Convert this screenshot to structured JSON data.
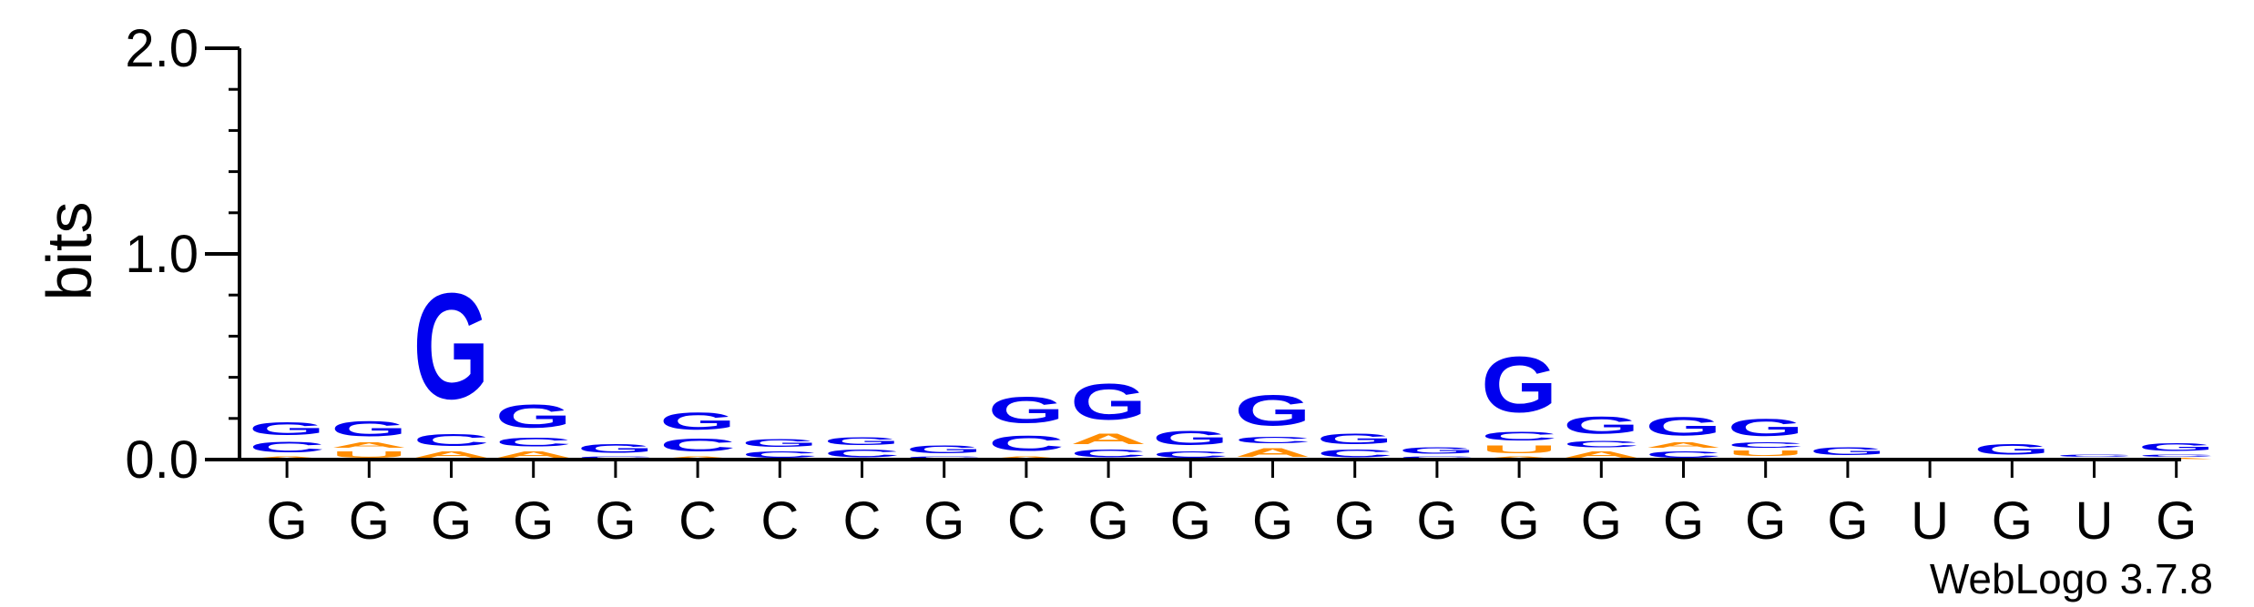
{
  "chart_data": {
    "type": "sequence-logo",
    "ylabel": "bits",
    "ylim": [
      0,
      2
    ],
    "yticks": [
      {
        "value": 0,
        "label": "0.0"
      },
      {
        "value": 1,
        "label": "1.0"
      },
      {
        "value": 2,
        "label": "2.0"
      }
    ],
    "minor_step": 0.2,
    "x_labels": [
      "G",
      "G",
      "G",
      "G",
      "G",
      "C",
      "C",
      "C",
      "G",
      "C",
      "G",
      "G",
      "G",
      "G",
      "G",
      "G",
      "G",
      "G",
      "G",
      "G",
      "U",
      "G",
      "U",
      "G"
    ],
    "colors": {
      "G": "#0000ee",
      "C": "#0000ee",
      "A": "#ff8c00",
      "U": "#ff8c00"
    },
    "positions": [
      {
        "stack": [
          {
            "letter": "A",
            "height": 0.02
          },
          {
            "letter": "C",
            "height": 0.08
          },
          {
            "letter": "G",
            "height": 0.1
          }
        ]
      },
      {
        "stack": [
          {
            "letter": "U",
            "height": 0.05
          },
          {
            "letter": "A",
            "height": 0.04
          },
          {
            "letter": "G",
            "height": 0.12
          }
        ]
      },
      {
        "stack": [
          {
            "letter": "A",
            "height": 0.05
          },
          {
            "letter": "C",
            "height": 0.09
          },
          {
            "letter": "G",
            "height": 0.82
          }
        ]
      },
      {
        "stack": [
          {
            "letter": "A",
            "height": 0.05
          },
          {
            "letter": "C",
            "height": 0.07
          },
          {
            "letter": "G",
            "height": 0.18
          }
        ]
      },
      {
        "stack": [
          {
            "letter": "C",
            "height": 0.02
          },
          {
            "letter": "G",
            "height": 0.07
          }
        ]
      },
      {
        "stack": [
          {
            "letter": "A",
            "height": 0.02
          },
          {
            "letter": "C",
            "height": 0.1
          },
          {
            "letter": "G",
            "height": 0.13
          }
        ]
      },
      {
        "stack": [
          {
            "letter": "C",
            "height": 0.05
          },
          {
            "letter": "G",
            "height": 0.06
          }
        ]
      },
      {
        "stack": [
          {
            "letter": "C",
            "height": 0.06
          },
          {
            "letter": "G",
            "height": 0.06
          }
        ]
      },
      {
        "stack": [
          {
            "letter": "C",
            "height": 0.02
          },
          {
            "letter": "G",
            "height": 0.06
          }
        ]
      },
      {
        "stack": [
          {
            "letter": "A",
            "height": 0.02
          },
          {
            "letter": "C",
            "height": 0.12
          },
          {
            "letter": "G",
            "height": 0.2
          }
        ]
      },
      {
        "stack": [
          {
            "letter": "C",
            "height": 0.06
          },
          {
            "letter": "A",
            "height": 0.08
          },
          {
            "letter": "G",
            "height": 0.28
          }
        ]
      },
      {
        "stack": [
          {
            "letter": "C",
            "height": 0.05
          },
          {
            "letter": "G",
            "height": 0.11
          }
        ]
      },
      {
        "stack": [
          {
            "letter": "A",
            "height": 0.07
          },
          {
            "letter": "C",
            "height": 0.05
          },
          {
            "letter": "G",
            "height": 0.24
          }
        ]
      },
      {
        "stack": [
          {
            "letter": "C",
            "height": 0.06
          },
          {
            "letter": "G",
            "height": 0.08
          }
        ]
      },
      {
        "stack": [
          {
            "letter": "C",
            "height": 0.02
          },
          {
            "letter": "G",
            "height": 0.05
          }
        ]
      },
      {
        "stack": [
          {
            "letter": "A",
            "height": 0.02
          },
          {
            "letter": "U",
            "height": 0.06
          },
          {
            "letter": "C",
            "height": 0.07
          },
          {
            "letter": "G",
            "height": 0.43
          }
        ]
      },
      {
        "stack": [
          {
            "letter": "A",
            "height": 0.05
          },
          {
            "letter": "C",
            "height": 0.05
          },
          {
            "letter": "G",
            "height": 0.13
          }
        ]
      },
      {
        "stack": [
          {
            "letter": "C",
            "height": 0.05
          },
          {
            "letter": "A",
            "height": 0.04
          },
          {
            "letter": "G",
            "height": 0.14
          }
        ]
      },
      {
        "stack": [
          {
            "letter": "A",
            "height": 0.01
          },
          {
            "letter": "U",
            "height": 0.04
          },
          {
            "letter": "C",
            "height": 0.04
          },
          {
            "letter": "G",
            "height": 0.13
          }
        ]
      },
      {
        "stack": [
          {
            "letter": "U",
            "height": 0.01
          },
          {
            "letter": "G",
            "height": 0.06
          }
        ]
      },
      {
        "stack": [
          {
            "letter": "U",
            "height": 0.01
          }
        ]
      },
      {
        "stack": [
          {
            "letter": "U",
            "height": 0.01
          },
          {
            "letter": "G",
            "height": 0.08
          }
        ]
      },
      {
        "stack": [
          {
            "letter": "U",
            "height": 0.01
          },
          {
            "letter": "C",
            "height": 0.02
          }
        ]
      },
      {
        "stack": [
          {
            "letter": "A",
            "height": 0.01
          },
          {
            "letter": "C",
            "height": 0.02
          },
          {
            "letter": "G",
            "height": 0.06
          }
        ]
      }
    ]
  },
  "footer": {
    "credit": "WebLogo 3.7.8"
  }
}
